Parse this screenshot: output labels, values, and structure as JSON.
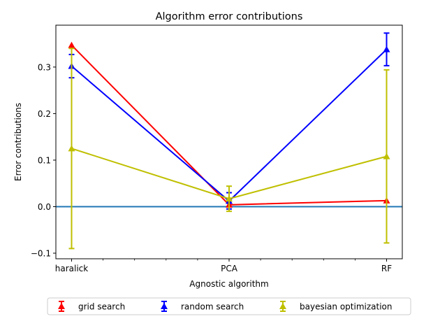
{
  "chart_data": {
    "type": "line",
    "title": "Algorithm error contributions",
    "xlabel": "Agnostic algorithm",
    "ylabel": "Error contributions",
    "categories": [
      "haralick",
      "PCA",
      "RF"
    ],
    "ylim": [
      -0.112,
      0.39
    ],
    "yticks": [
      -0.1,
      0.0,
      0.1,
      0.2,
      0.3
    ],
    "ytick_labels": [
      "−0.1",
      "0.0",
      "0.1",
      "0.2",
      "0.3"
    ],
    "xticks_minor_between": 4,
    "reference_line": {
      "y": 0.0,
      "color": "#1f77b4"
    },
    "legend_position": "below-center",
    "series": [
      {
        "name": "grid search",
        "color": "#ff0000",
        "values": [
          0.347,
          0.004,
          0.013
        ],
        "err_low": [
          0.347,
          0.004,
          0.013
        ],
        "err_high": [
          0.347,
          0.004,
          0.013
        ]
      },
      {
        "name": "random search",
        "color": "#0000ff",
        "values": [
          0.302,
          0.012,
          0.338
        ],
        "err_low": [
          0.277,
          -0.005,
          0.303
        ],
        "err_high": [
          0.327,
          0.03,
          0.373
        ]
      },
      {
        "name": "bayesian optimization",
        "color": "#bfbf00",
        "values": [
          0.125,
          0.017,
          0.108
        ],
        "err_low": [
          -0.09,
          -0.01,
          -0.078
        ],
        "err_high": [
          0.34,
          0.044,
          0.294
        ]
      }
    ]
  }
}
